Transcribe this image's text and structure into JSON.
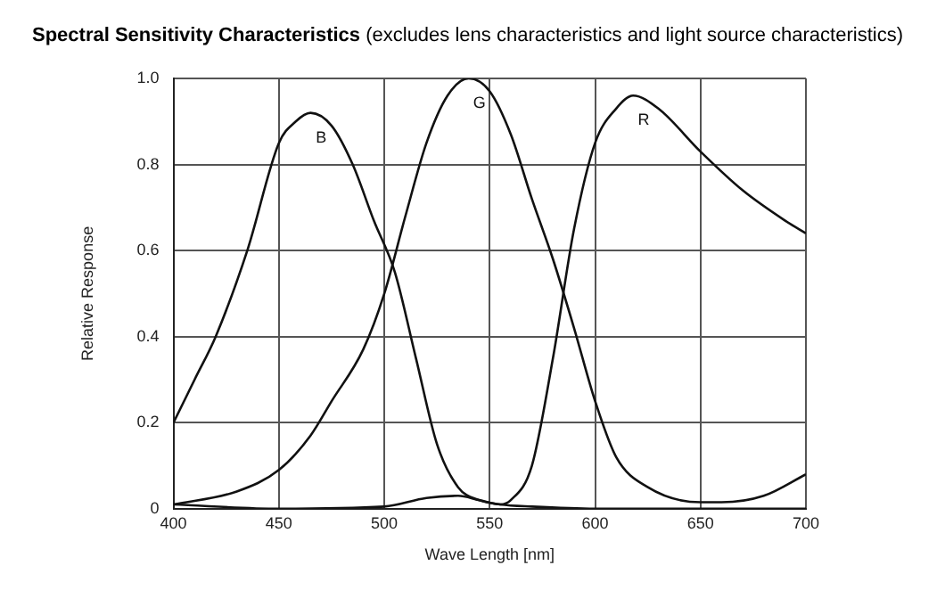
{
  "chart_data": {
    "type": "line",
    "title": "Spectral Sensitivity Characteristics",
    "subtitle": "(excludes lens characteristics and light source characteristics)",
    "xlabel": "Wave Length [nm]",
    "ylabel": "Relative Response",
    "xlim": [
      400,
      700
    ],
    "xticks": [
      400,
      450,
      500,
      550,
      600,
      650,
      700
    ],
    "ylim": [
      0,
      1
    ],
    "yticks": [
      {
        "value": 0,
        "label": "0"
      },
      0.2,
      0.4,
      0.6,
      0.8,
      {
        "value": 1,
        "label": "1.0"
      }
    ],
    "grid": true,
    "legend": false,
    "marker": "none",
    "line_style": "solid",
    "series": [
      {
        "name": "B",
        "color": "#111111",
        "x": [
          400,
          410,
          420,
          435,
          450,
          458,
          465,
          475,
          485,
          495,
          505,
          515,
          525,
          535,
          545,
          555,
          570,
          600,
          650,
          700
        ],
        "values": [
          0.2,
          0.3,
          0.4,
          0.6,
          0.85,
          0.9,
          0.92,
          0.89,
          0.8,
          0.67,
          0.55,
          0.35,
          0.15,
          0.05,
          0.02,
          0.01,
          0.005,
          0,
          0,
          0
        ]
      },
      {
        "name": "G",
        "color": "#111111",
        "x": [
          400,
          430,
          450,
          465,
          475,
          490,
          500,
          510,
          520,
          530,
          540,
          550,
          560,
          570,
          580,
          590,
          600,
          610,
          625,
          650,
          660,
          680,
          700
        ],
        "values": [
          0.01,
          0.04,
          0.09,
          0.17,
          0.25,
          0.37,
          0.5,
          0.68,
          0.85,
          0.96,
          1.0,
          0.97,
          0.87,
          0.72,
          0.58,
          0.42,
          0.25,
          0.12,
          0.05,
          0.015,
          0.015,
          0.03,
          0.08
        ]
      },
      {
        "name": "R",
        "color": "#111111",
        "x": [
          400,
          450,
          500,
          520,
          535,
          545,
          555,
          560,
          570,
          580,
          590,
          600,
          610,
          618,
          630,
          650,
          670,
          690,
          700
        ],
        "values": [
          0.01,
          0,
          0.005,
          0.025,
          0.03,
          0.02,
          0.01,
          0.02,
          0.1,
          0.35,
          0.65,
          0.85,
          0.93,
          0.96,
          0.93,
          0.83,
          0.74,
          0.67,
          0.64
        ]
      }
    ]
  }
}
